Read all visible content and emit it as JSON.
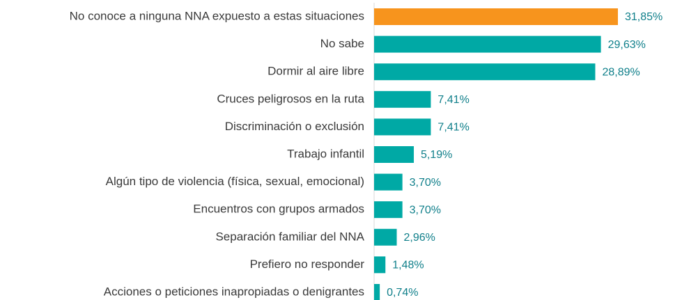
{
  "chart_data": {
    "type": "bar",
    "orientation": "horizontal",
    "categories": [
      "No conoce a ninguna NNA expuesto a estas situaciones",
      "No sabe",
      "Dormir al aire libre",
      "Cruces peligrosos en la ruta",
      "Discriminación o exclusión",
      "Trabajo infantil",
      "Algún tipo de violencia (física, sexual, emocional)",
      "Encuentros con grupos armados",
      "Separación familiar del NNA",
      "Prefiero no responder",
      "Acciones o peticiones inapropiadas o denigrantes"
    ],
    "values": [
      31.85,
      29.63,
      28.89,
      7.41,
      7.41,
      5.19,
      3.7,
      3.7,
      2.96,
      1.48,
      0.74
    ],
    "value_labels": [
      "31,85%",
      "29,63%",
      "28,89%",
      "7,41%",
      "7,41%",
      "5,19%",
      "3,70%",
      "3,70%",
      "2,96%",
      "1,48%",
      "0,74%"
    ],
    "colors": [
      "#f7941d",
      "#00a9a5",
      "#00a9a5",
      "#00a9a5",
      "#00a9a5",
      "#00a9a5",
      "#00a9a5",
      "#00a9a5",
      "#00a9a5",
      "#00a9a5",
      "#00a9a5"
    ]
  }
}
